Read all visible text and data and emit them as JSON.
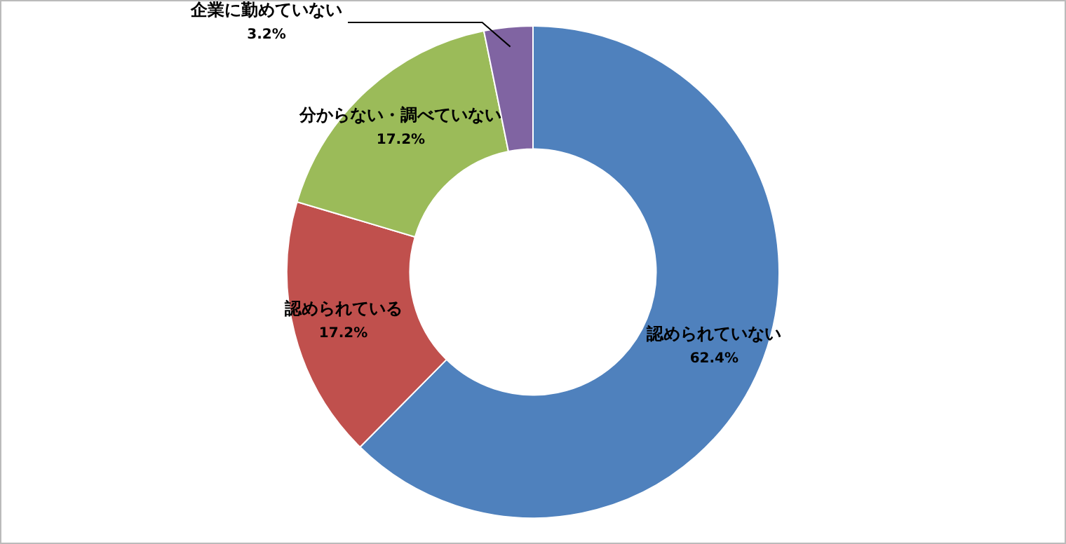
{
  "chart_data": {
    "type": "donut",
    "categories": [
      "認められていない",
      "認められている",
      "分からない・調べていない",
      "企業に勤めていない"
    ],
    "values": [
      62.4,
      17.2,
      17.2,
      3.2
    ],
    "colors": [
      "#4f81bd",
      "#c0504d",
      "#9bbb59",
      "#8064a2"
    ],
    "value_labels": [
      "62.4%",
      "17.2%",
      "17.2%",
      "3.2%"
    ],
    "legend": false
  }
}
